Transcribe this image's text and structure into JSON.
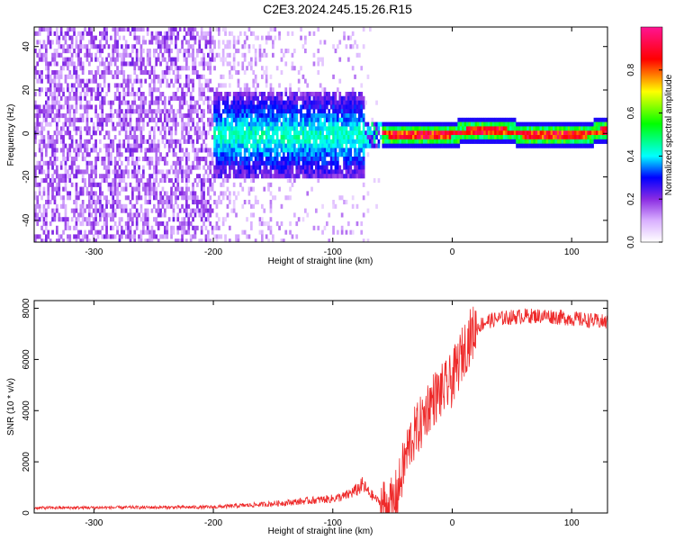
{
  "title": "C2E3.2024.245.15.26.R15",
  "chart_data": [
    {
      "type": "heatmap",
      "xlabel": "Height of straight line (km)",
      "ylabel": "Frequency (Hz)",
      "xlim": [
        -350,
        130
      ],
      "ylim": [
        -50,
        49
      ],
      "x_ticks": [
        -300,
        -200,
        -100,
        0,
        100
      ],
      "y_ticks": [
        -40,
        -20,
        0,
        20,
        40
      ],
      "x_tick_labels": [
        "-300",
        "-200",
        "-100",
        "0",
        "100"
      ],
      "y_tick_labels": [
        "-40",
        "-20",
        "0",
        "20",
        "40"
      ],
      "colorbar": {
        "label": "Normalized spectral amplitude",
        "range": [
          0,
          1
        ],
        "ticks": [
          0,
          0.2,
          0.4,
          0.6,
          0.8
        ],
        "tick_labels": [
          "0.0",
          "0.2",
          "0.4",
          "0.6",
          "0.8"
        ],
        "colors": [
          "#ffffff",
          "#8a2be2",
          "#0000ff",
          "#00ffff",
          "#00ff00",
          "#ffff00",
          "#ff0000",
          "#ff1493"
        ]
      },
      "regions": [
        {
          "x": [
            -350,
            -200
          ],
          "frequency": [
            -50,
            49
          ],
          "amplitude": [
            0.05,
            0.15
          ]
        },
        {
          "x": [
            -200,
            -75
          ],
          "frequency": [
            -20,
            20
          ],
          "amplitude": [
            0.1,
            0.35
          ]
        },
        {
          "x": [
            -60,
            130
          ],
          "frequency": [
            -3,
            3
          ],
          "amplitude": [
            0.6,
            0.95
          ]
        }
      ],
      "grid": false
    },
    {
      "type": "line",
      "xlabel": "Height of straight line (km)",
      "ylabel": "SNR (10 * v/v)",
      "xlim": [
        -350,
        130
      ],
      "ylim": [
        0,
        8300
      ],
      "x_ticks": [
        -300,
        -200,
        -100,
        0,
        100
      ],
      "y_ticks": [
        0,
        2000,
        4000,
        6000,
        8000
      ],
      "x_tick_labels": [
        "-300",
        "-200",
        "-100",
        "0",
        "100"
      ],
      "y_tick_labels": [
        "0",
        "2000",
        "4000",
        "6000",
        "8000"
      ],
      "color": "#ee2a2a",
      "grid": false,
      "series": [
        {
          "x": [
            -350,
            -300,
            -250,
            -200,
            -180,
            -160,
            -140,
            -120,
            -100,
            -90,
            -80,
            -75,
            -70,
            -60,
            -55,
            -50,
            -45,
            -40,
            -35,
            -30,
            -25,
            -20,
            -15,
            -10,
            -5,
            0,
            5,
            10,
            15,
            20,
            25,
            30,
            40,
            50,
            60,
            70,
            80,
            90,
            100,
            110,
            120,
            130
          ],
          "values": [
            200,
            210,
            220,
            230,
            280,
            330,
            400,
            480,
            560,
            650,
            900,
            1100,
            800,
            400,
            250,
            300,
            900,
            2000,
            2800,
            3200,
            3600,
            4200,
            4500,
            4700,
            4900,
            5200,
            5800,
            6400,
            6900,
            7200,
            7400,
            7500,
            7600,
            7650,
            7700,
            7700,
            7700,
            7650,
            7600,
            7550,
            7500,
            7450
          ]
        }
      ]
    }
  ]
}
